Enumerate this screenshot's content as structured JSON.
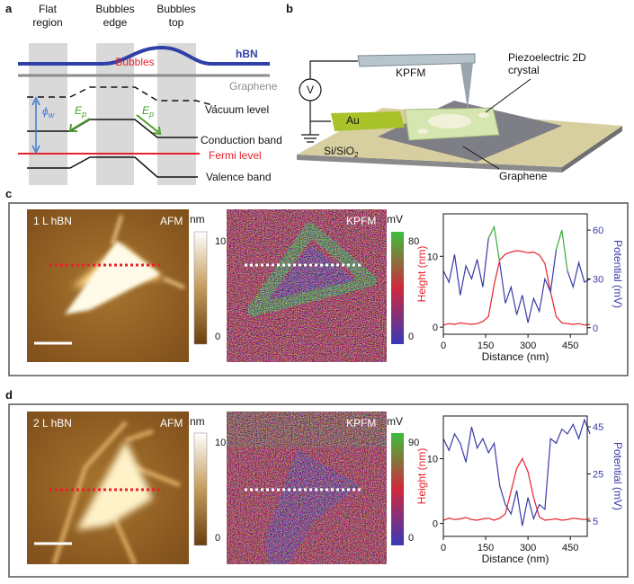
{
  "panel_a": {
    "label": "a",
    "columns": [
      [
        "Flat",
        "region"
      ],
      [
        "Bubbles",
        "edge"
      ],
      [
        "Bubbles",
        "top"
      ]
    ],
    "hbn": "hBN",
    "bubbles": "Bubbles",
    "graphene": "Graphene",
    "phi": {
      "base": "ϕ",
      "sub": "w"
    },
    "ep": {
      "base": "E",
      "sub": "p"
    },
    "levels": [
      "Vacuum level",
      "Conduction band",
      "Fermi level",
      "Valence band"
    ]
  },
  "panel_b": {
    "label": "b",
    "kpfm": "KPFM",
    "voltage": "V",
    "crystal": [
      "Piezoelectric 2D",
      "crystal"
    ],
    "au": "Au",
    "substrate": {
      "base": "Si/SiO",
      "sub": "2"
    },
    "graphene": "Graphene"
  },
  "panel_c": {
    "label": "c",
    "sample": "1 L hBN",
    "afm": "AFM",
    "afm_unit": "nm",
    "afm_scale": [
      10,
      0
    ],
    "kpfm": "KPFM",
    "kpfm_unit": "mV",
    "kpfm_scale": [
      80,
      0
    ]
  },
  "panel_d": {
    "label": "d",
    "sample": "2 L hBN",
    "afm": "AFM",
    "afm_unit": "nm",
    "afm_scale": [
      10,
      0
    ],
    "kpfm": "KPFM",
    "kpfm_unit": "mV",
    "kpfm_scale": [
      90,
      0
    ]
  },
  "chart_data": [
    {
      "type": "line",
      "xlabel": "Distance (nm)",
      "ylabel": "Height (nm)",
      "y2label": "Potential (mV)",
      "x": [
        0,
        20,
        40,
        60,
        80,
        100,
        120,
        140,
        160,
        180,
        200,
        220,
        240,
        260,
        280,
        300,
        320,
        340,
        360,
        380,
        400,
        420,
        440,
        460,
        480,
        500,
        520
      ],
      "xlim": [
        0,
        510
      ],
      "xticks": [
        0,
        150,
        300,
        450
      ],
      "ylim": [
        -1,
        16
      ],
      "yticks": [
        0,
        10
      ],
      "y2lim": [
        -4,
        70
      ],
      "y2ticks": [
        0,
        30,
        60
      ],
      "series": [
        {
          "color": "#e8202a",
          "axis": "y",
          "values": [
            0.3,
            0.5,
            0.4,
            0.6,
            0.5,
            0.4,
            0.5,
            0.8,
            1.5,
            6,
            9.5,
            10.3,
            10.6,
            10.8,
            10.7,
            10.5,
            10.6,
            10.2,
            9,
            5,
            1.5,
            0.6,
            0.5,
            0.4,
            0.5,
            0.3,
            0.4
          ]
        },
        {
          "color": "#3a3aa8",
          "axis": "y2",
          "values": [
            35,
            28,
            45,
            20,
            38,
            30,
            42,
            25,
            55,
            null,
            40,
            15,
            25,
            8,
            20,
            3,
            18,
            10,
            30,
            22,
            48,
            null,
            35,
            25,
            40,
            28,
            30
          ]
        },
        {
          "color": "#3aaa3a",
          "axis": "y2",
          "values": [
            null,
            null,
            null,
            null,
            null,
            null,
            null,
            null,
            55,
            62,
            40,
            null,
            null,
            null,
            null,
            null,
            null,
            null,
            null,
            null,
            48,
            60,
            35,
            null,
            null,
            null,
            null
          ]
        }
      ]
    },
    {
      "type": "line",
      "xlabel": "Distance (nm)",
      "ylabel": "Height (nm)",
      "y2label": "Potential (mV)",
      "x": [
        0,
        20,
        40,
        60,
        80,
        100,
        120,
        140,
        160,
        180,
        200,
        220,
        240,
        260,
        280,
        300,
        320,
        340,
        360,
        380,
        400,
        420,
        440,
        460,
        480,
        500,
        520
      ],
      "xlim": [
        0,
        510
      ],
      "xticks": [
        0,
        150,
        300,
        450
      ],
      "ylim": [
        -2,
        16.6
      ],
      "yticks": [
        0,
        10
      ],
      "y2lim": [
        -1.5,
        49.6
      ],
      "y2ticks": [
        5,
        25,
        45
      ],
      "series": [
        {
          "color": "#e8202a",
          "axis": "y",
          "values": [
            0.5,
            0.8,
            0.6,
            0.7,
            0.9,
            0.6,
            0.5,
            0.7,
            0.8,
            0.5,
            0.8,
            1.5,
            5,
            8.5,
            10,
            8,
            4,
            1,
            0.5,
            0.6,
            0.7,
            0.5,
            0.6,
            0.8,
            0.7,
            0.6,
            0.7
          ]
        },
        {
          "color": "#3a3aa8",
          "axis": "y2",
          "values": [
            40,
            35,
            42,
            38,
            30,
            45,
            36,
            40,
            34,
            38,
            20,
            12,
            8,
            18,
            3,
            15,
            6,
            12,
            10,
            40,
            38,
            44,
            42,
            46,
            40,
            48,
            42
          ]
        }
      ]
    }
  ]
}
